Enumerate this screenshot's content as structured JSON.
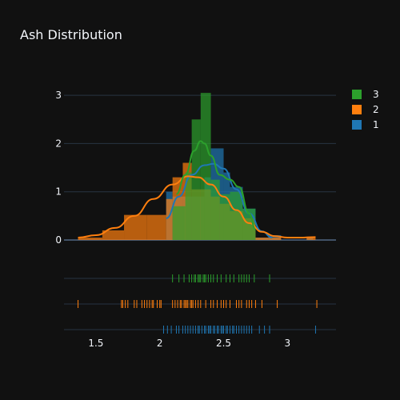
{
  "chart_data": {
    "type": "histogram",
    "title": "Ash Distribution",
    "xlabel": "",
    "ylabel": "",
    "xlim": [
      1.25,
      3.38
    ],
    "ylim": [
      0,
      3.4
    ],
    "x_ticks": [
      1.5,
      2,
      2.5,
      3
    ],
    "y_ticks": [
      0,
      1,
      2,
      3
    ],
    "grid": true,
    "barmode": "overlay",
    "legend": {
      "position": "top-right",
      "order": [
        "3",
        "2",
        "1"
      ]
    },
    "series": [
      {
        "name": "1",
        "color": "#1f77b4",
        "bins": [
          {
            "x0": 2.05,
            "x1": 2.1,
            "y": 1.0
          },
          {
            "x0": 2.1,
            "x1": 2.35,
            "y": 0.9
          },
          {
            "x0": 2.35,
            "x1": 2.4,
            "y": 1.3
          },
          {
            "x0": 2.4,
            "x1": 2.5,
            "y": 1.9
          },
          {
            "x0": 2.5,
            "x1": 2.55,
            "y": 1.4
          },
          {
            "x0": 2.55,
            "x1": 2.65,
            "y": 1.1
          },
          {
            "x0": 2.65,
            "x1": 2.75,
            "y": 0.65
          },
          {
            "x0": 2.75,
            "x1": 2.85,
            "y": 0.05
          },
          {
            "x0": 2.85,
            "x1": 2.95,
            "y": 0.1
          },
          {
            "x0": 3.15,
            "x1": 3.2,
            "y": 0.05
          }
        ],
        "kde": {
          "x": [
            2.05,
            2.15,
            2.25,
            2.35,
            2.42,
            2.5,
            2.6,
            2.7,
            2.8,
            2.88
          ],
          "y": [
            0.45,
            0.9,
            1.35,
            1.55,
            1.58,
            1.48,
            1.05,
            0.55,
            0.18,
            0.05
          ]
        },
        "rug": [
          2.03,
          2.06,
          2.09,
          2.13,
          2.15,
          2.18,
          2.2,
          2.22,
          2.24,
          2.26,
          2.28,
          2.3,
          2.31,
          2.33,
          2.35,
          2.36,
          2.38,
          2.39,
          2.4,
          2.42,
          2.43,
          2.45,
          2.46,
          2.48,
          2.49,
          2.5,
          2.52,
          2.53,
          2.55,
          2.57,
          2.58,
          2.6,
          2.62,
          2.64,
          2.66,
          2.68,
          2.7,
          2.72,
          2.78,
          2.82,
          2.86,
          3.22
        ]
      },
      {
        "name": "2",
        "color": "#ff7f0e",
        "bins": [
          {
            "x0": 1.36,
            "x1": 1.55,
            "y": 0.05
          },
          {
            "x0": 1.55,
            "x1": 1.72,
            "y": 0.2
          },
          {
            "x0": 1.72,
            "x1": 1.9,
            "y": 0.52
          },
          {
            "x0": 1.9,
            "x1": 2.05,
            "y": 0.52
          },
          {
            "x0": 2.05,
            "x1": 2.1,
            "y": 0.85
          },
          {
            "x0": 2.1,
            "x1": 2.18,
            "y": 1.3
          },
          {
            "x0": 2.18,
            "x1": 2.25,
            "y": 1.6
          },
          {
            "x0": 2.25,
            "x1": 2.4,
            "y": 1.05
          },
          {
            "x0": 2.4,
            "x1": 2.47,
            "y": 0.9
          },
          {
            "x0": 2.47,
            "x1": 2.55,
            "y": 0.75
          },
          {
            "x0": 2.55,
            "x1": 2.65,
            "y": 0.6
          },
          {
            "x0": 2.65,
            "x1": 2.75,
            "y": 0.45
          },
          {
            "x0": 2.75,
            "x1": 2.85,
            "y": 0.05
          },
          {
            "x0": 2.85,
            "x1": 2.95,
            "y": 0.05
          },
          {
            "x0": 3.15,
            "x1": 3.22,
            "y": 0.05
          }
        ],
        "kde": {
          "x": [
            1.36,
            1.5,
            1.65,
            1.8,
            1.95,
            2.1,
            2.22,
            2.3,
            2.4,
            2.5,
            2.6,
            2.7,
            2.8,
            2.9,
            3.0,
            3.1,
            3.22
          ],
          "y": [
            0.05,
            0.1,
            0.25,
            0.5,
            0.85,
            1.15,
            1.32,
            1.3,
            1.15,
            0.9,
            0.62,
            0.35,
            0.17,
            0.08,
            0.05,
            0.05,
            0.06
          ]
        },
        "rug": [
          1.36,
          1.7,
          1.71,
          1.73,
          1.75,
          1.8,
          1.82,
          1.86,
          1.88,
          1.9,
          1.92,
          1.94,
          1.95,
          1.98,
          2.0,
          2.01,
          2.1,
          2.12,
          2.14,
          2.16,
          2.17,
          2.19,
          2.2,
          2.21,
          2.22,
          2.24,
          2.25,
          2.26,
          2.28,
          2.3,
          2.32,
          2.36,
          2.4,
          2.42,
          2.45,
          2.48,
          2.5,
          2.52,
          2.55,
          2.6,
          2.62,
          2.64,
          2.68,
          2.7,
          2.72,
          2.75,
          2.8,
          2.92,
          3.23
        ]
      },
      {
        "name": "3",
        "color": "#2ca02c",
        "bins": [
          {
            "x0": 2.1,
            "x1": 2.2,
            "y": 0.7
          },
          {
            "x0": 2.2,
            "x1": 2.25,
            "y": 1.4
          },
          {
            "x0": 2.25,
            "x1": 2.32,
            "y": 2.5
          },
          {
            "x0": 2.32,
            "x1": 2.4,
            "y": 3.05
          },
          {
            "x0": 2.4,
            "x1": 2.47,
            "y": 1.25
          },
          {
            "x0": 2.47,
            "x1": 2.55,
            "y": 0.95
          },
          {
            "x0": 2.55,
            "x1": 2.65,
            "y": 1.0
          },
          {
            "x0": 2.65,
            "x1": 2.75,
            "y": 0.65
          }
        ],
        "kde": {
          "x": [
            2.13,
            2.2,
            2.27,
            2.32,
            2.35,
            2.4,
            2.47,
            2.55,
            2.62,
            2.7,
            2.75
          ],
          "y": [
            0.95,
            1.35,
            1.85,
            2.05,
            2.0,
            1.75,
            1.35,
            1.25,
            1.1,
            0.55,
            0.22
          ]
        },
        "rug": [
          2.1,
          2.15,
          2.19,
          2.23,
          2.25,
          2.27,
          2.28,
          2.3,
          2.31,
          2.32,
          2.34,
          2.35,
          2.36,
          2.38,
          2.4,
          2.42,
          2.45,
          2.48,
          2.52,
          2.55,
          2.58,
          2.62,
          2.64,
          2.66,
          2.68,
          2.7,
          2.74,
          2.86
        ]
      }
    ]
  }
}
